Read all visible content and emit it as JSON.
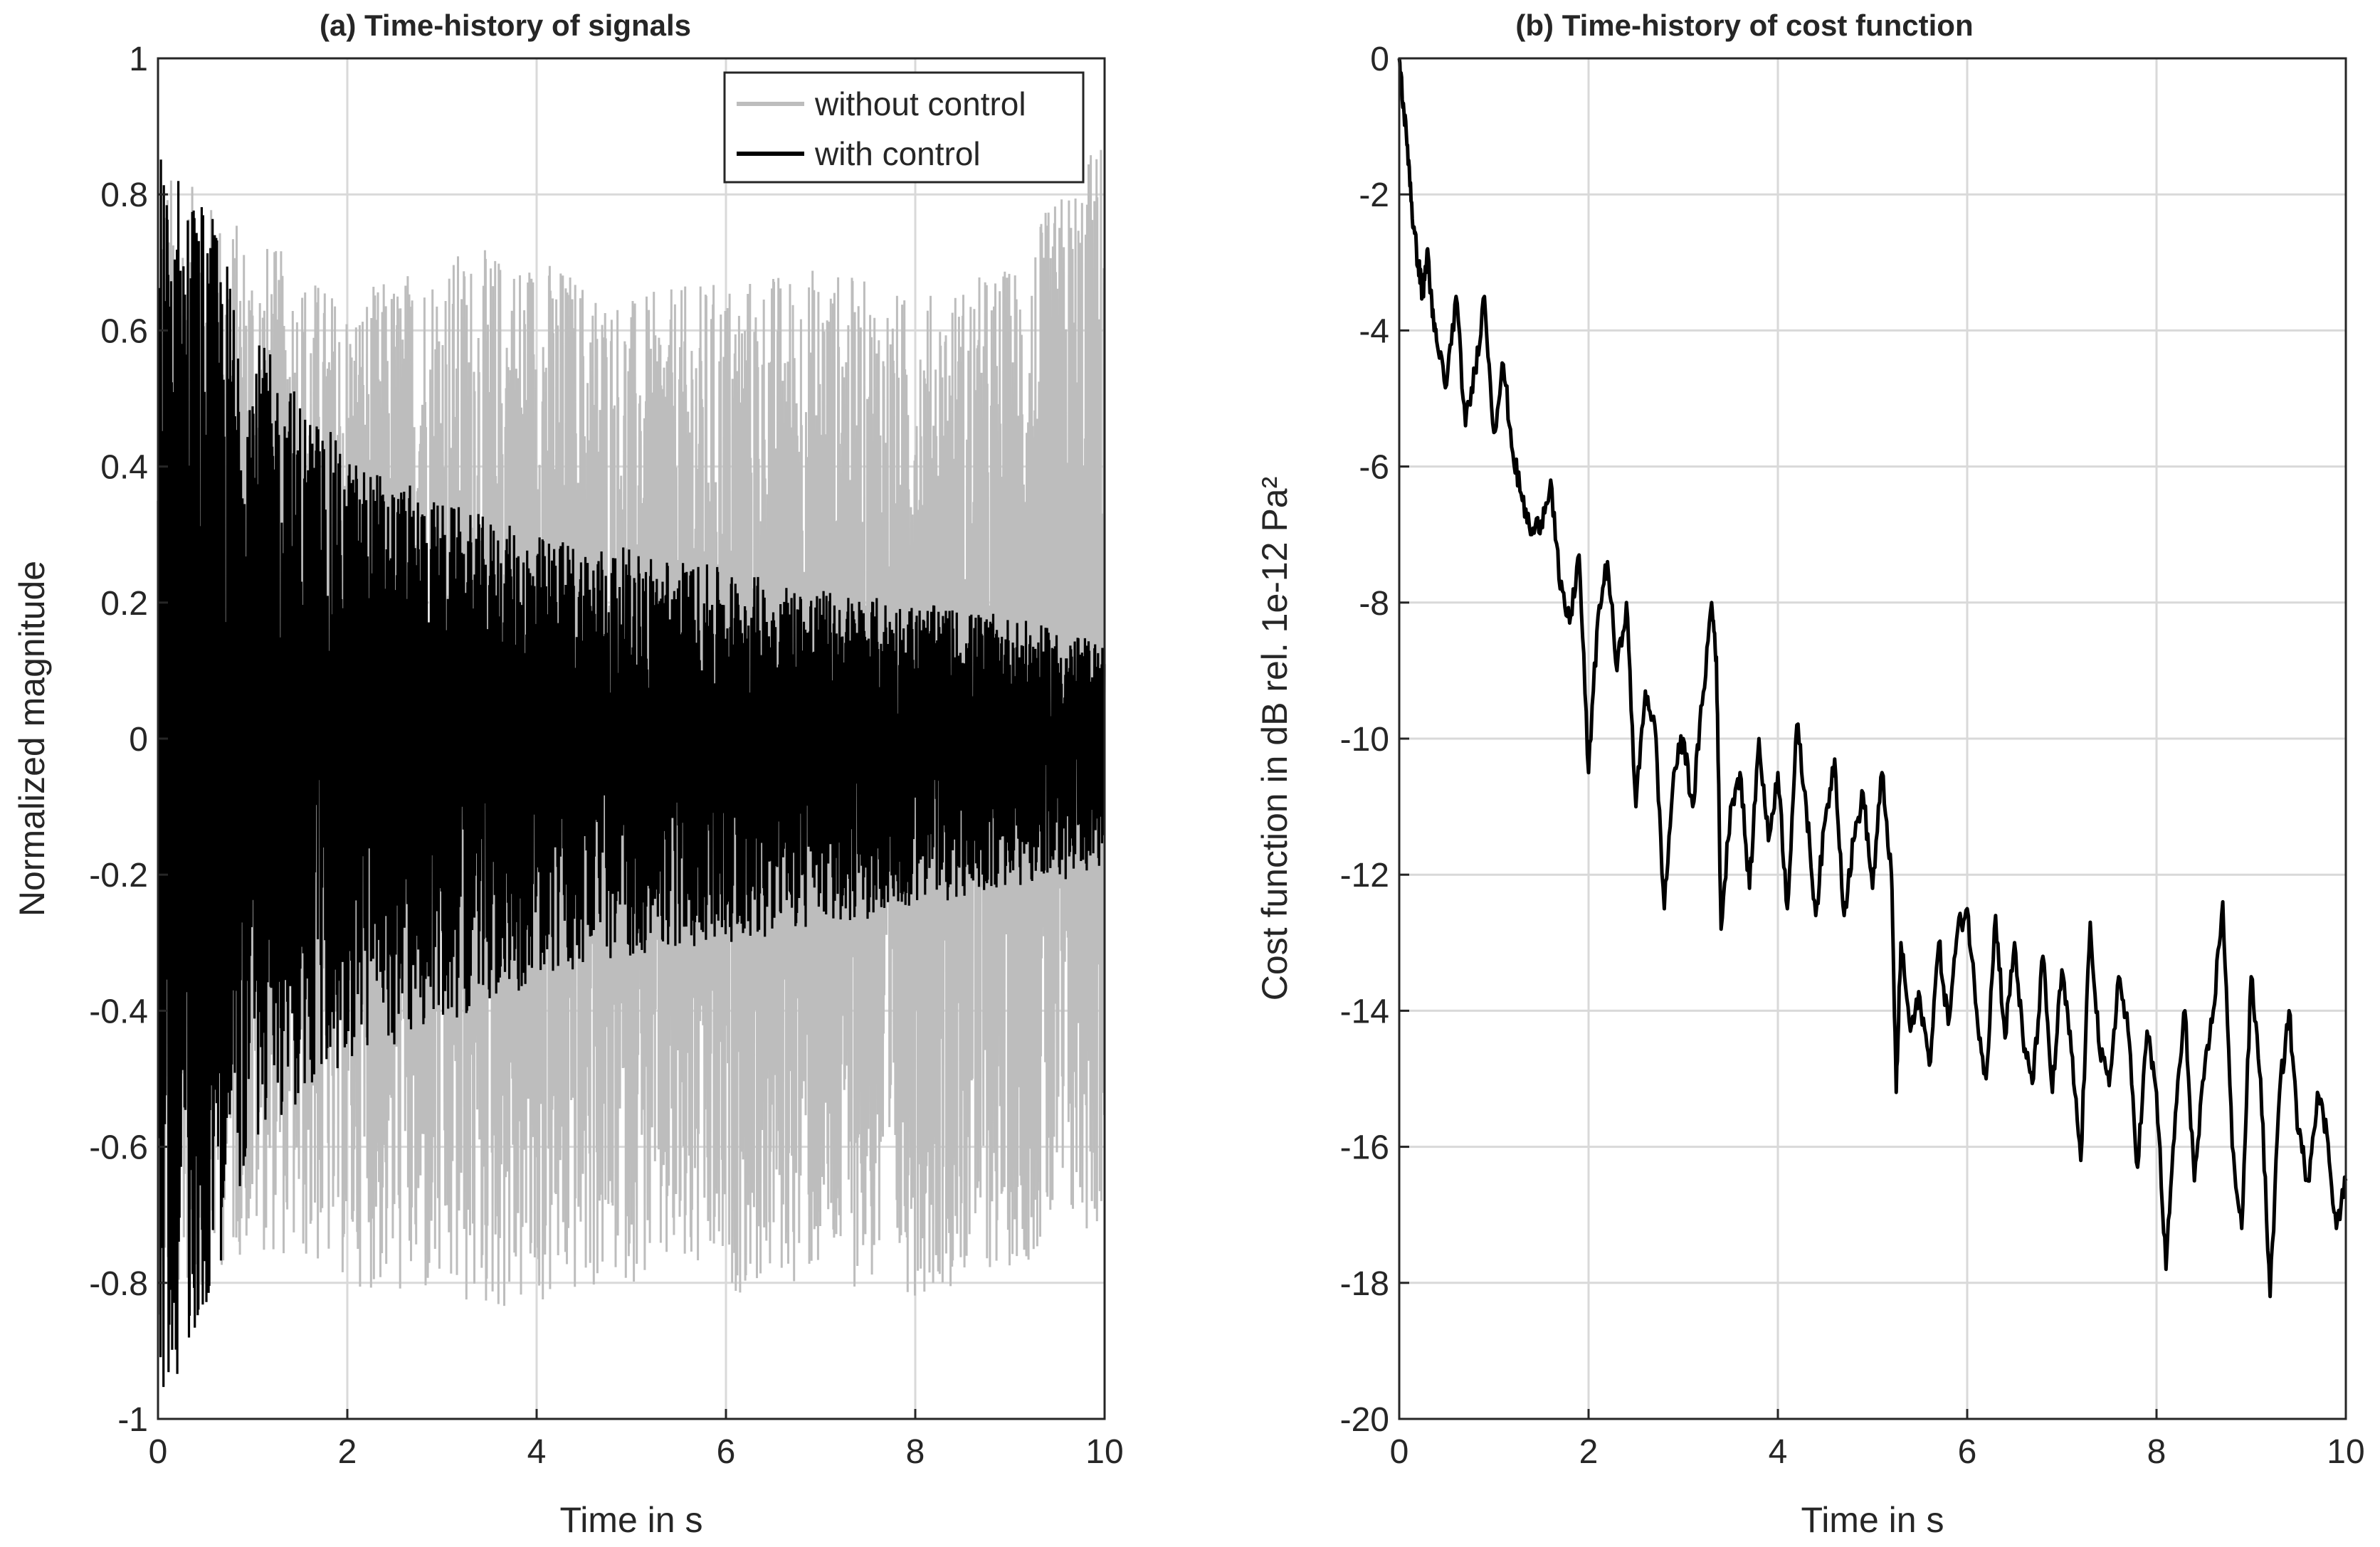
{
  "chart_data": [
    {
      "type": "line",
      "title": "(a) Time-history of signals",
      "xlabel": "Time in s",
      "ylabel": "Normalized magnitude",
      "xlim": [
        0,
        10
      ],
      "ylim": [
        -1,
        1
      ],
      "xticks": [
        "0",
        "2",
        "4",
        "6",
        "8",
        "10"
      ],
      "yticks": [
        "1",
        "0.8",
        "0.6",
        "0.4",
        "0.2",
        "0",
        "-0.2",
        "-0.4",
        "-0.6",
        "-0.8",
        "-1"
      ],
      "grid": true,
      "legend": "top-right",
      "series": [
        {
          "name": "without control",
          "color": "#bdbdbd",
          "envelope_t": [
            0,
            1,
            2,
            3,
            4,
            5,
            6,
            7,
            8,
            9,
            10
          ],
          "envelope_max": [
            0.85,
            0.75,
            0.65,
            0.72,
            0.72,
            0.65,
            0.68,
            0.7,
            0.65,
            0.7,
            0.9
          ],
          "envelope_min": [
            -0.85,
            -0.75,
            -0.8,
            -0.85,
            -0.85,
            -0.8,
            -0.82,
            -0.8,
            -0.82,
            -0.78,
            -0.72
          ]
        },
        {
          "name": "with control",
          "color": "#000000",
          "envelope_t": [
            0,
            0.5,
            1,
            2,
            3,
            4,
            5,
            6,
            7,
            8,
            9,
            10
          ],
          "envelope_max": [
            0.88,
            0.8,
            0.6,
            0.42,
            0.35,
            0.3,
            0.28,
            0.25,
            0.22,
            0.2,
            0.18,
            0.14
          ],
          "envelope_min": [
            -1.0,
            -0.85,
            -0.6,
            -0.48,
            -0.42,
            -0.36,
            -0.32,
            -0.3,
            -0.28,
            -0.25,
            -0.22,
            -0.2
          ]
        }
      ]
    },
    {
      "type": "line",
      "title": "(b) Time-history of cost function",
      "xlabel": "Time in s",
      "ylabel": "Cost function in dB rel. 1e-12 Pa²",
      "xlim": [
        0,
        10
      ],
      "ylim": [
        -20,
        0
      ],
      "xticks": [
        "0",
        "2",
        "4",
        "6",
        "8",
        "10"
      ],
      "yticks": [
        "0",
        "-2",
        "-4",
        "-6",
        "-8",
        "-10",
        "-12",
        "-14",
        "-16",
        "-18",
        "-20"
      ],
      "grid": true,
      "series": [
        {
          "color": "#000000",
          "x": [
            0,
            0.05,
            0.1,
            0.15,
            0.2,
            0.25,
            0.3,
            0.35,
            0.4,
            0.5,
            0.6,
            0.7,
            0.8,
            0.9,
            1.0,
            1.1,
            1.2,
            1.3,
            1.4,
            1.5,
            1.6,
            1.7,
            1.8,
            1.9,
            2.0,
            2.1,
            2.2,
            2.3,
            2.4,
            2.5,
            2.6,
            2.7,
            2.8,
            2.9,
            3.0,
            3.1,
            3.2,
            3.3,
            3.35,
            3.4,
            3.5,
            3.6,
            3.7,
            3.8,
            3.9,
            4.0,
            4.1,
            4.2,
            4.3,
            4.4,
            4.5,
            4.6,
            4.7,
            4.8,
            4.9,
            5.0,
            5.1,
            5.2,
            5.25,
            5.3,
            5.4,
            5.5,
            5.6,
            5.7,
            5.8,
            5.9,
            6.0,
            6.1,
            6.2,
            6.3,
            6.4,
            6.5,
            6.6,
            6.7,
            6.8,
            6.9,
            7.0,
            7.1,
            7.2,
            7.3,
            7.4,
            7.5,
            7.6,
            7.7,
            7.8,
            7.9,
            8.0,
            8.1,
            8.2,
            8.3,
            8.4,
            8.5,
            8.6,
            8.7,
            8.8,
            8.9,
            9.0,
            9.1,
            9.2,
            9.3,
            9.4,
            9.5,
            9.6,
            9.7,
            9.8,
            9.9,
            10.0
          ],
          "y": [
            0,
            -0.8,
            -1.5,
            -2.5,
            -3.0,
            -3.5,
            -2.8,
            -3.8,
            -4.2,
            -4.8,
            -3.5,
            -5.4,
            -4.6,
            -3.5,
            -5.5,
            -4.5,
            -5.8,
            -6.5,
            -7.0,
            -6.8,
            -6.2,
            -7.8,
            -8.3,
            -7.3,
            -10.5,
            -8.2,
            -7.4,
            -9.0,
            -8.0,
            -11.0,
            -9.3,
            -9.8,
            -12.5,
            -10.5,
            -10.0,
            -11.0,
            -9.5,
            -8.0,
            -8.8,
            -12.8,
            -11.0,
            -10.5,
            -12.2,
            -10.0,
            -11.5,
            -10.5,
            -12.5,
            -9.8,
            -11.0,
            -12.6,
            -11.2,
            -10.3,
            -12.6,
            -11.5,
            -10.8,
            -12.2,
            -10.5,
            -12.0,
            -15.2,
            -13.0,
            -14.3,
            -13.8,
            -14.8,
            -13.0,
            -14.2,
            -12.8,
            -12.5,
            -14.0,
            -15.0,
            -12.6,
            -14.4,
            -13.0,
            -14.6,
            -15.0,
            -13.2,
            -15.2,
            -13.4,
            -14.6,
            -16.2,
            -12.7,
            -14.6,
            -15.1,
            -13.5,
            -14.3,
            -16.3,
            -14.3,
            -15.2,
            -17.8,
            -15.5,
            -14.0,
            -16.5,
            -15.0,
            -14.0,
            -12.4,
            -16.0,
            -17.2,
            -13.5,
            -15.0,
            -18.2,
            -15.2,
            -14.0,
            -15.8,
            -16.5,
            -15.2,
            -15.8,
            -17.2,
            -16.5
          ]
        }
      ]
    }
  ]
}
